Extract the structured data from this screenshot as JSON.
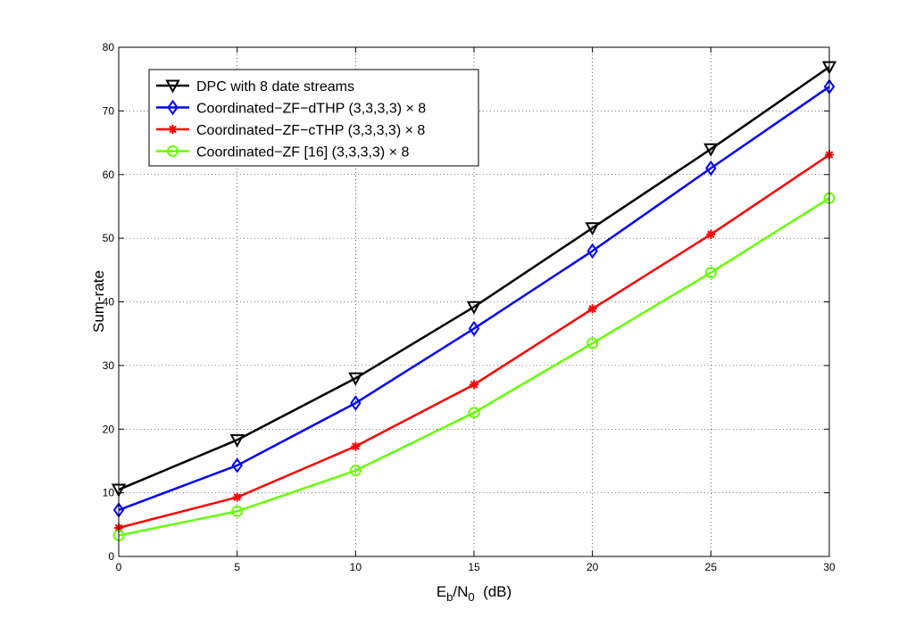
{
  "chart_data": {
    "type": "line",
    "title": "",
    "xlabel_main": "E",
    "xlabel_sub1": "b",
    "xlabel_sep": "/N",
    "xlabel_sub2": "0",
    "xlabel_unit": "  (dB)",
    "ylabel": "Sum-rate",
    "x": [
      0,
      5,
      10,
      15,
      20,
      25,
      30
    ],
    "xlim": [
      0,
      30
    ],
    "ylim": [
      0,
      80
    ],
    "xticks": [
      0,
      5,
      10,
      15,
      20,
      25,
      30
    ],
    "yticks": [
      0,
      10,
      20,
      30,
      40,
      50,
      60,
      70,
      80
    ],
    "grid": true,
    "legend_position": "top-left",
    "series": [
      {
        "name": "DPC with 8 date streams",
        "color": "#000000",
        "marker": "triangle-down",
        "values": [
          10.5,
          18.3,
          28.0,
          39.2,
          51.6,
          64.0,
          76.9
        ]
      },
      {
        "name": "Coordinated−ZF−dTHP (3,3,3,3) × 8",
        "color": "#0000ff",
        "marker": "diamond",
        "values": [
          7.3,
          14.3,
          24.1,
          35.8,
          48.0,
          61.0,
          73.8
        ]
      },
      {
        "name": "Coordinated−ZF−cTHP (3,3,3,3) × 8",
        "color": "#ff0000",
        "marker": "asterisk",
        "values": [
          4.5,
          9.3,
          17.3,
          27.0,
          38.9,
          50.6,
          63.1
        ]
      },
      {
        "name": "Coordinated−ZF [16] (3,3,3,3) × 8",
        "color": "#66ff00",
        "marker": "circle",
        "values": [
          3.3,
          7.1,
          13.5,
          22.6,
          33.5,
          44.6,
          56.3
        ]
      }
    ]
  }
}
